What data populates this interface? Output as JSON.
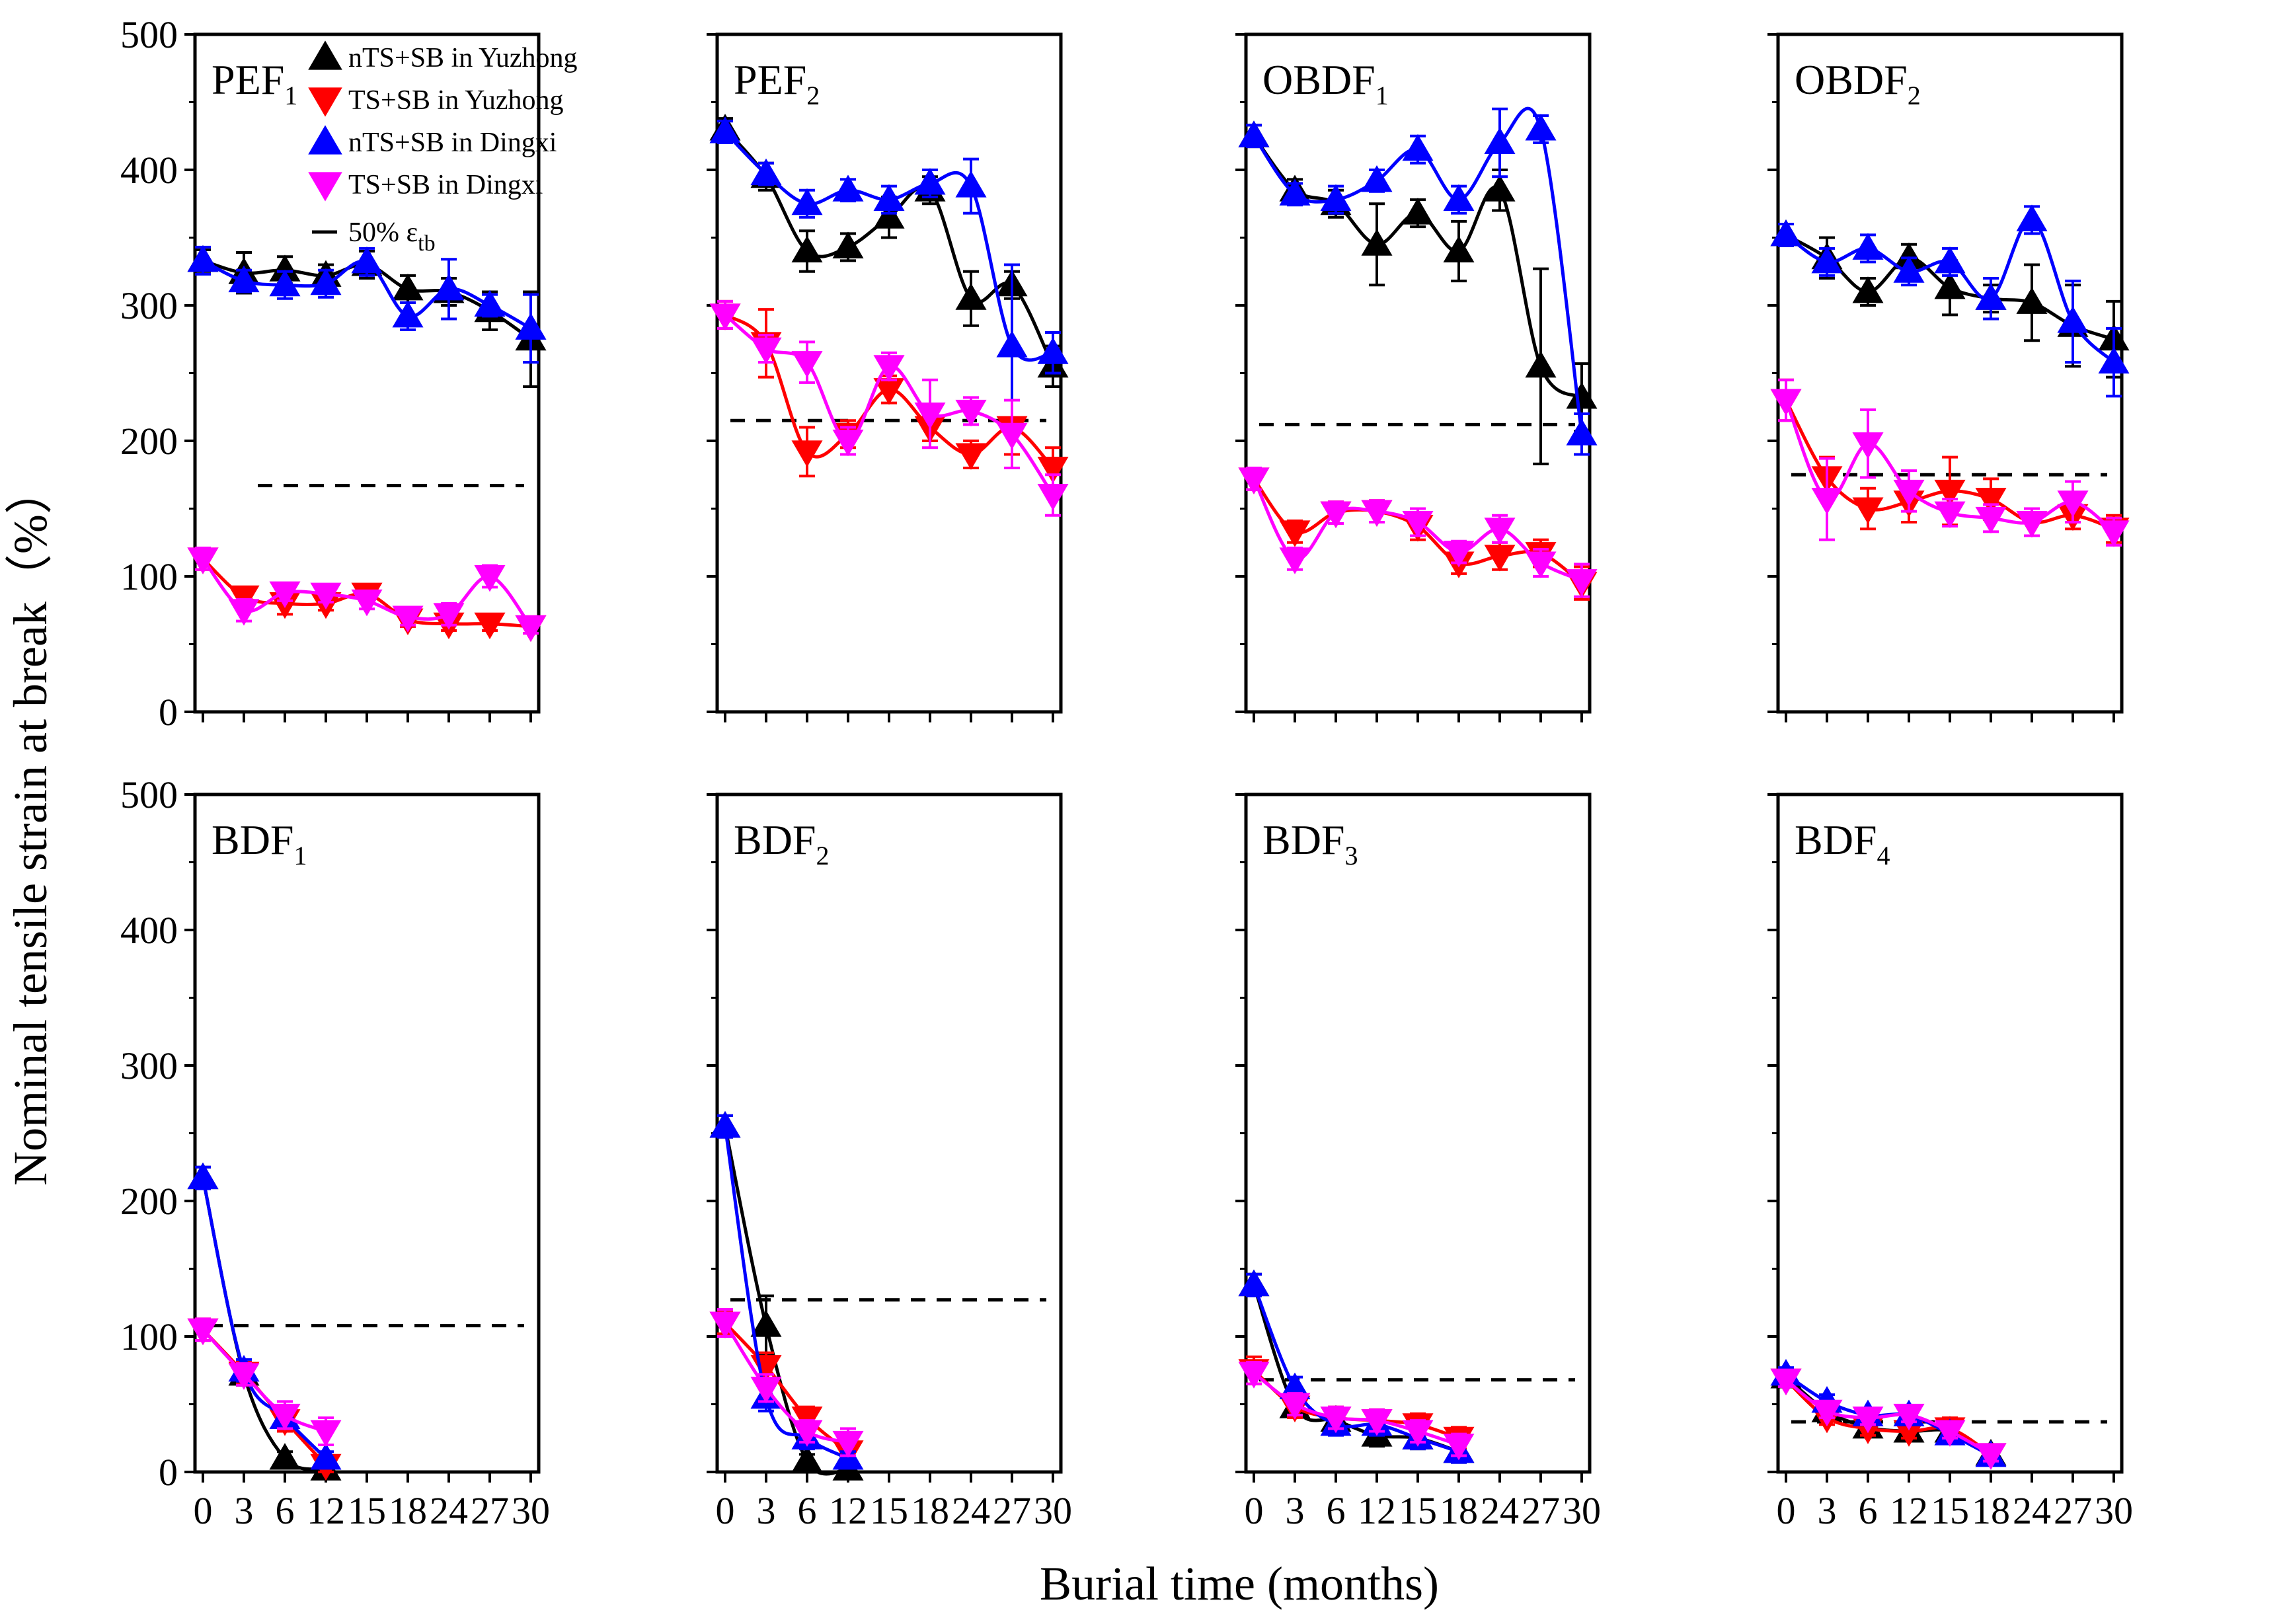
{
  "figure": {
    "xlabel": "Burial time (months)",
    "ylabel": "Nominal tensile strain at break（%）"
  },
  "legend": {
    "entries": [
      {
        "label": "nTS+SB in Yuzhong",
        "color": "#000000",
        "marker": "triangle-up"
      },
      {
        "label": "TS+SB in Yuzhong",
        "color": "#ff0000",
        "marker": "triangle-down"
      },
      {
        "label": "nTS+SB in Dingxi",
        "color": "#0000ff",
        "marker": "triangle-up"
      },
      {
        "label": "TS+SB in Dingxi",
        "color": "#ff00ff",
        "marker": "triangle-down"
      }
    ],
    "threshold_label": "50%",
    "threshold_symbol": "ε",
    "threshold_sub": "tb",
    "placement": "top-left of first panel"
  },
  "chart_data": [
    {
      "type": "line",
      "panel": "PEF1",
      "label_main": "PEF",
      "label_sub": "1",
      "x_tick_labels": [
        "0",
        "3",
        "6",
        "12",
        "15",
        "18",
        "24",
        "27",
        "30"
      ],
      "ylim": [
        0,
        500
      ],
      "threshold": 167,
      "series": [
        {
          "ref": 0,
          "values": [
            333,
            324,
            326,
            322,
            330,
            312,
            310,
            296,
            275
          ],
          "errors": [
            8,
            15,
            10,
            8,
            10,
            10,
            10,
            14,
            35
          ]
        },
        {
          "ref": 1,
          "values": [
            113,
            85,
            80,
            80,
            87,
            68,
            65,
            65,
            63
          ],
          "errors": [
            8,
            5,
            8,
            5,
            6,
            5,
            5,
            5,
            5
          ]
        },
        {
          "ref": 2,
          "values": [
            333,
            318,
            315,
            316,
            332,
            292,
            312,
            300,
            283
          ],
          "errors": [
            10,
            8,
            10,
            10,
            10,
            10,
            22,
            8,
            25
          ]
        },
        {
          "ref": 3,
          "values": [
            113,
            75,
            88,
            87,
            82,
            70,
            72,
            100,
            63
          ],
          "errors": [
            8,
            8,
            6,
            6,
            6,
            6,
            8,
            8,
            5
          ]
        }
      ]
    },
    {
      "type": "line",
      "panel": "PEF2",
      "label_main": "PEF",
      "label_sub": "2",
      "x_tick_labels": [
        "0",
        "3",
        "6",
        "12",
        "15",
        "18",
        "24",
        "27",
        "30"
      ],
      "ylim": [
        0,
        500
      ],
      "threshold": 215,
      "series": [
        {
          "ref": 0,
          "values": [
            430,
            395,
            340,
            343,
            365,
            385,
            305,
            315,
            255
          ],
          "errors": [
            8,
            10,
            15,
            10,
            15,
            10,
            20,
            10,
            15
          ]
        },
        {
          "ref": 1,
          "values": [
            293,
            272,
            192,
            205,
            238,
            210,
            190,
            210,
            180
          ],
          "errors": [
            10,
            25,
            18,
            10,
            10,
            10,
            10,
            20,
            15
          ]
        },
        {
          "ref": 2,
          "values": [
            428,
            397,
            375,
            385,
            378,
            390,
            388,
            270,
            265
          ],
          "errors": [
            8,
            8,
            10,
            8,
            10,
            10,
            20,
            60,
            15
          ]
        },
        {
          "ref": 3,
          "values": [
            293,
            268,
            258,
            200,
            255,
            220,
            222,
            205,
            160
          ],
          "errors": [
            10,
            10,
            15,
            10,
            10,
            25,
            10,
            25,
            15
          ]
        }
      ]
    },
    {
      "type": "line",
      "panel": "OBDF1",
      "label_main": "OBDF",
      "label_sub": "1",
      "x_tick_labels": [
        "0",
        "3",
        "6",
        "12",
        "15",
        "18",
        "24",
        "27",
        "30"
      ],
      "ylim": [
        0,
        500
      ],
      "threshold": 212,
      "series": [
        {
          "ref": 0,
          "values": [
            425,
            385,
            375,
            345,
            368,
            340,
            385,
            255,
            232
          ],
          "errors": [
            8,
            8,
            10,
            30,
            10,
            22,
            15,
            72,
            25
          ]
        },
        {
          "ref": 1,
          "values": [
            172,
            133,
            147,
            148,
            137,
            110,
            115,
            117,
            95
          ],
          "errors": [
            8,
            8,
            8,
            8,
            10,
            8,
            10,
            10,
            12
          ]
        },
        {
          "ref": 2,
          "values": [
            425,
            382,
            378,
            392,
            415,
            378,
            420,
            430,
            205
          ],
          "errors": [
            8,
            8,
            10,
            8,
            10,
            10,
            25,
            10,
            15
          ]
        },
        {
          "ref": 3,
          "values": [
            172,
            113,
            147,
            148,
            140,
            118,
            135,
            110,
            97
          ],
          "errors": [
            8,
            8,
            8,
            8,
            10,
            8,
            10,
            10,
            12
          ]
        }
      ]
    },
    {
      "type": "line",
      "panel": "OBDF2",
      "label_main": "OBDF",
      "label_sub": "2",
      "x_tick_labels": [
        "0",
        "3",
        "6",
        "12",
        "15",
        "18",
        "24",
        "27",
        "30"
      ],
      "ylim": [
        0,
        500
      ],
      "threshold": 175,
      "series": [
        {
          "ref": 0,
          "values": [
            352,
            335,
            310,
            335,
            313,
            305,
            302,
            285,
            275
          ],
          "errors": [
            8,
            15,
            10,
            10,
            20,
            10,
            28,
            30,
            28
          ]
        },
        {
          "ref": 1,
          "values": [
            230,
            173,
            150,
            155,
            163,
            157,
            140,
            145,
            135
          ],
          "errors": [
            15,
            15,
            15,
            15,
            25,
            15,
            10,
            10,
            10
          ]
        },
        {
          "ref": 2,
          "values": [
            352,
            332,
            342,
            325,
            332,
            305,
            363,
            288,
            258
          ],
          "errors": [
            8,
            10,
            10,
            10,
            10,
            15,
            10,
            30,
            25
          ]
        },
        {
          "ref": 3,
          "values": [
            230,
            157,
            198,
            163,
            147,
            143,
            140,
            155,
            133
          ],
          "errors": [
            15,
            30,
            25,
            15,
            10,
            10,
            10,
            15,
            10
          ]
        }
      ]
    },
    {
      "type": "line",
      "panel": "BDF1",
      "label_main": "BDF",
      "label_sub": "1",
      "x_tick_labels": [
        "0",
        "3",
        "6",
        "12",
        "15",
        "18",
        "24",
        "27",
        "30"
      ],
      "ylim": [
        0,
        500
      ],
      "threshold": 108,
      "series": [
        {
          "ref": 0,
          "values": [
            217,
            72,
            10,
            2
          ],
          "errors": [
            8,
            8,
            5,
            3
          ]
        },
        {
          "ref": 1,
          "values": [
            105,
            73,
            38,
            5
          ],
          "errors": [
            8,
            8,
            8,
            5
          ]
        },
        {
          "ref": 2,
          "values": [
            217,
            75,
            40,
            10
          ],
          "errors": [
            8,
            8,
            8,
            5
          ]
        },
        {
          "ref": 3,
          "values": [
            105,
            72,
            42,
            30
          ],
          "errors": [
            8,
            8,
            10,
            10
          ]
        }
      ]
    },
    {
      "type": "line",
      "panel": "BDF2",
      "label_main": "BDF",
      "label_sub": "2",
      "x_tick_labels": [
        "0",
        "3",
        "6",
        "12",
        "15",
        "18",
        "24",
        "27",
        "30"
      ],
      "ylim": [
        0,
        500
      ],
      "threshold": 127,
      "series": [
        {
          "ref": 0,
          "values": [
            255,
            108,
            8,
            2
          ],
          "errors": [
            8,
            22,
            5,
            3
          ]
        },
        {
          "ref": 1,
          "values": [
            110,
            78,
            40,
            15
          ],
          "errors": [
            8,
            10,
            8,
            5
          ]
        },
        {
          "ref": 2,
          "values": [
            255,
            55,
            25,
            10
          ],
          "errors": [
            8,
            10,
            8,
            5
          ]
        },
        {
          "ref": 3,
          "values": [
            110,
            62,
            30,
            22
          ],
          "errors": [
            10,
            10,
            8,
            10
          ]
        }
      ]
    },
    {
      "type": "line",
      "panel": "BDF3",
      "label_main": "BDF",
      "label_sub": "3",
      "x_tick_labels": [
        "0",
        "3",
        "6",
        "12",
        "15",
        "18",
        "24",
        "27",
        "30"
      ],
      "ylim": [
        0,
        500
      ],
      "threshold": 68,
      "series": [
        {
          "ref": 0,
          "values": [
            138,
            48,
            38,
            27,
            25,
            15
          ],
          "errors": [
            8,
            8,
            8,
            8,
            8,
            8
          ]
        },
        {
          "ref": 1,
          "values": [
            75,
            48,
            40,
            38,
            35,
            25
          ],
          "errors": [
            10,
            8,
            8,
            8,
            8,
            8
          ]
        },
        {
          "ref": 2,
          "values": [
            138,
            62,
            35,
            35,
            25,
            15
          ],
          "errors": [
            8,
            8,
            8,
            8,
            8,
            8
          ]
        },
        {
          "ref": 3,
          "values": [
            73,
            50,
            40,
            38,
            30,
            20
          ],
          "errors": [
            8,
            8,
            8,
            8,
            8,
            8
          ]
        }
      ]
    },
    {
      "type": "line",
      "panel": "BDF4",
      "label_main": "BDF",
      "label_sub": "4",
      "x_tick_labels": [
        "0",
        "3",
        "6",
        "12",
        "15",
        "18",
        "24",
        "27",
        "30"
      ],
      "ylim": [
        0,
        500
      ],
      "threshold": 37,
      "series": [
        {
          "ref": 0,
          "values": [
            70,
            45,
            33,
            30,
            30,
            13
          ],
          "errors": [
            5,
            5,
            5,
            5,
            5,
            5
          ]
        },
        {
          "ref": 1,
          "values": [
            68,
            40,
            32,
            30,
            32,
            13
          ],
          "errors": [
            5,
            5,
            5,
            5,
            8,
            5
          ]
        },
        {
          "ref": 2,
          "values": [
            72,
            52,
            42,
            42,
            28,
            12
          ],
          "errors": [
            5,
            5,
            5,
            5,
            5,
            5
          ]
        },
        {
          "ref": 3,
          "values": [
            68,
            45,
            40,
            42,
            30,
            13
          ],
          "errors": [
            5,
            5,
            5,
            5,
            5,
            5
          ]
        }
      ]
    }
  ]
}
